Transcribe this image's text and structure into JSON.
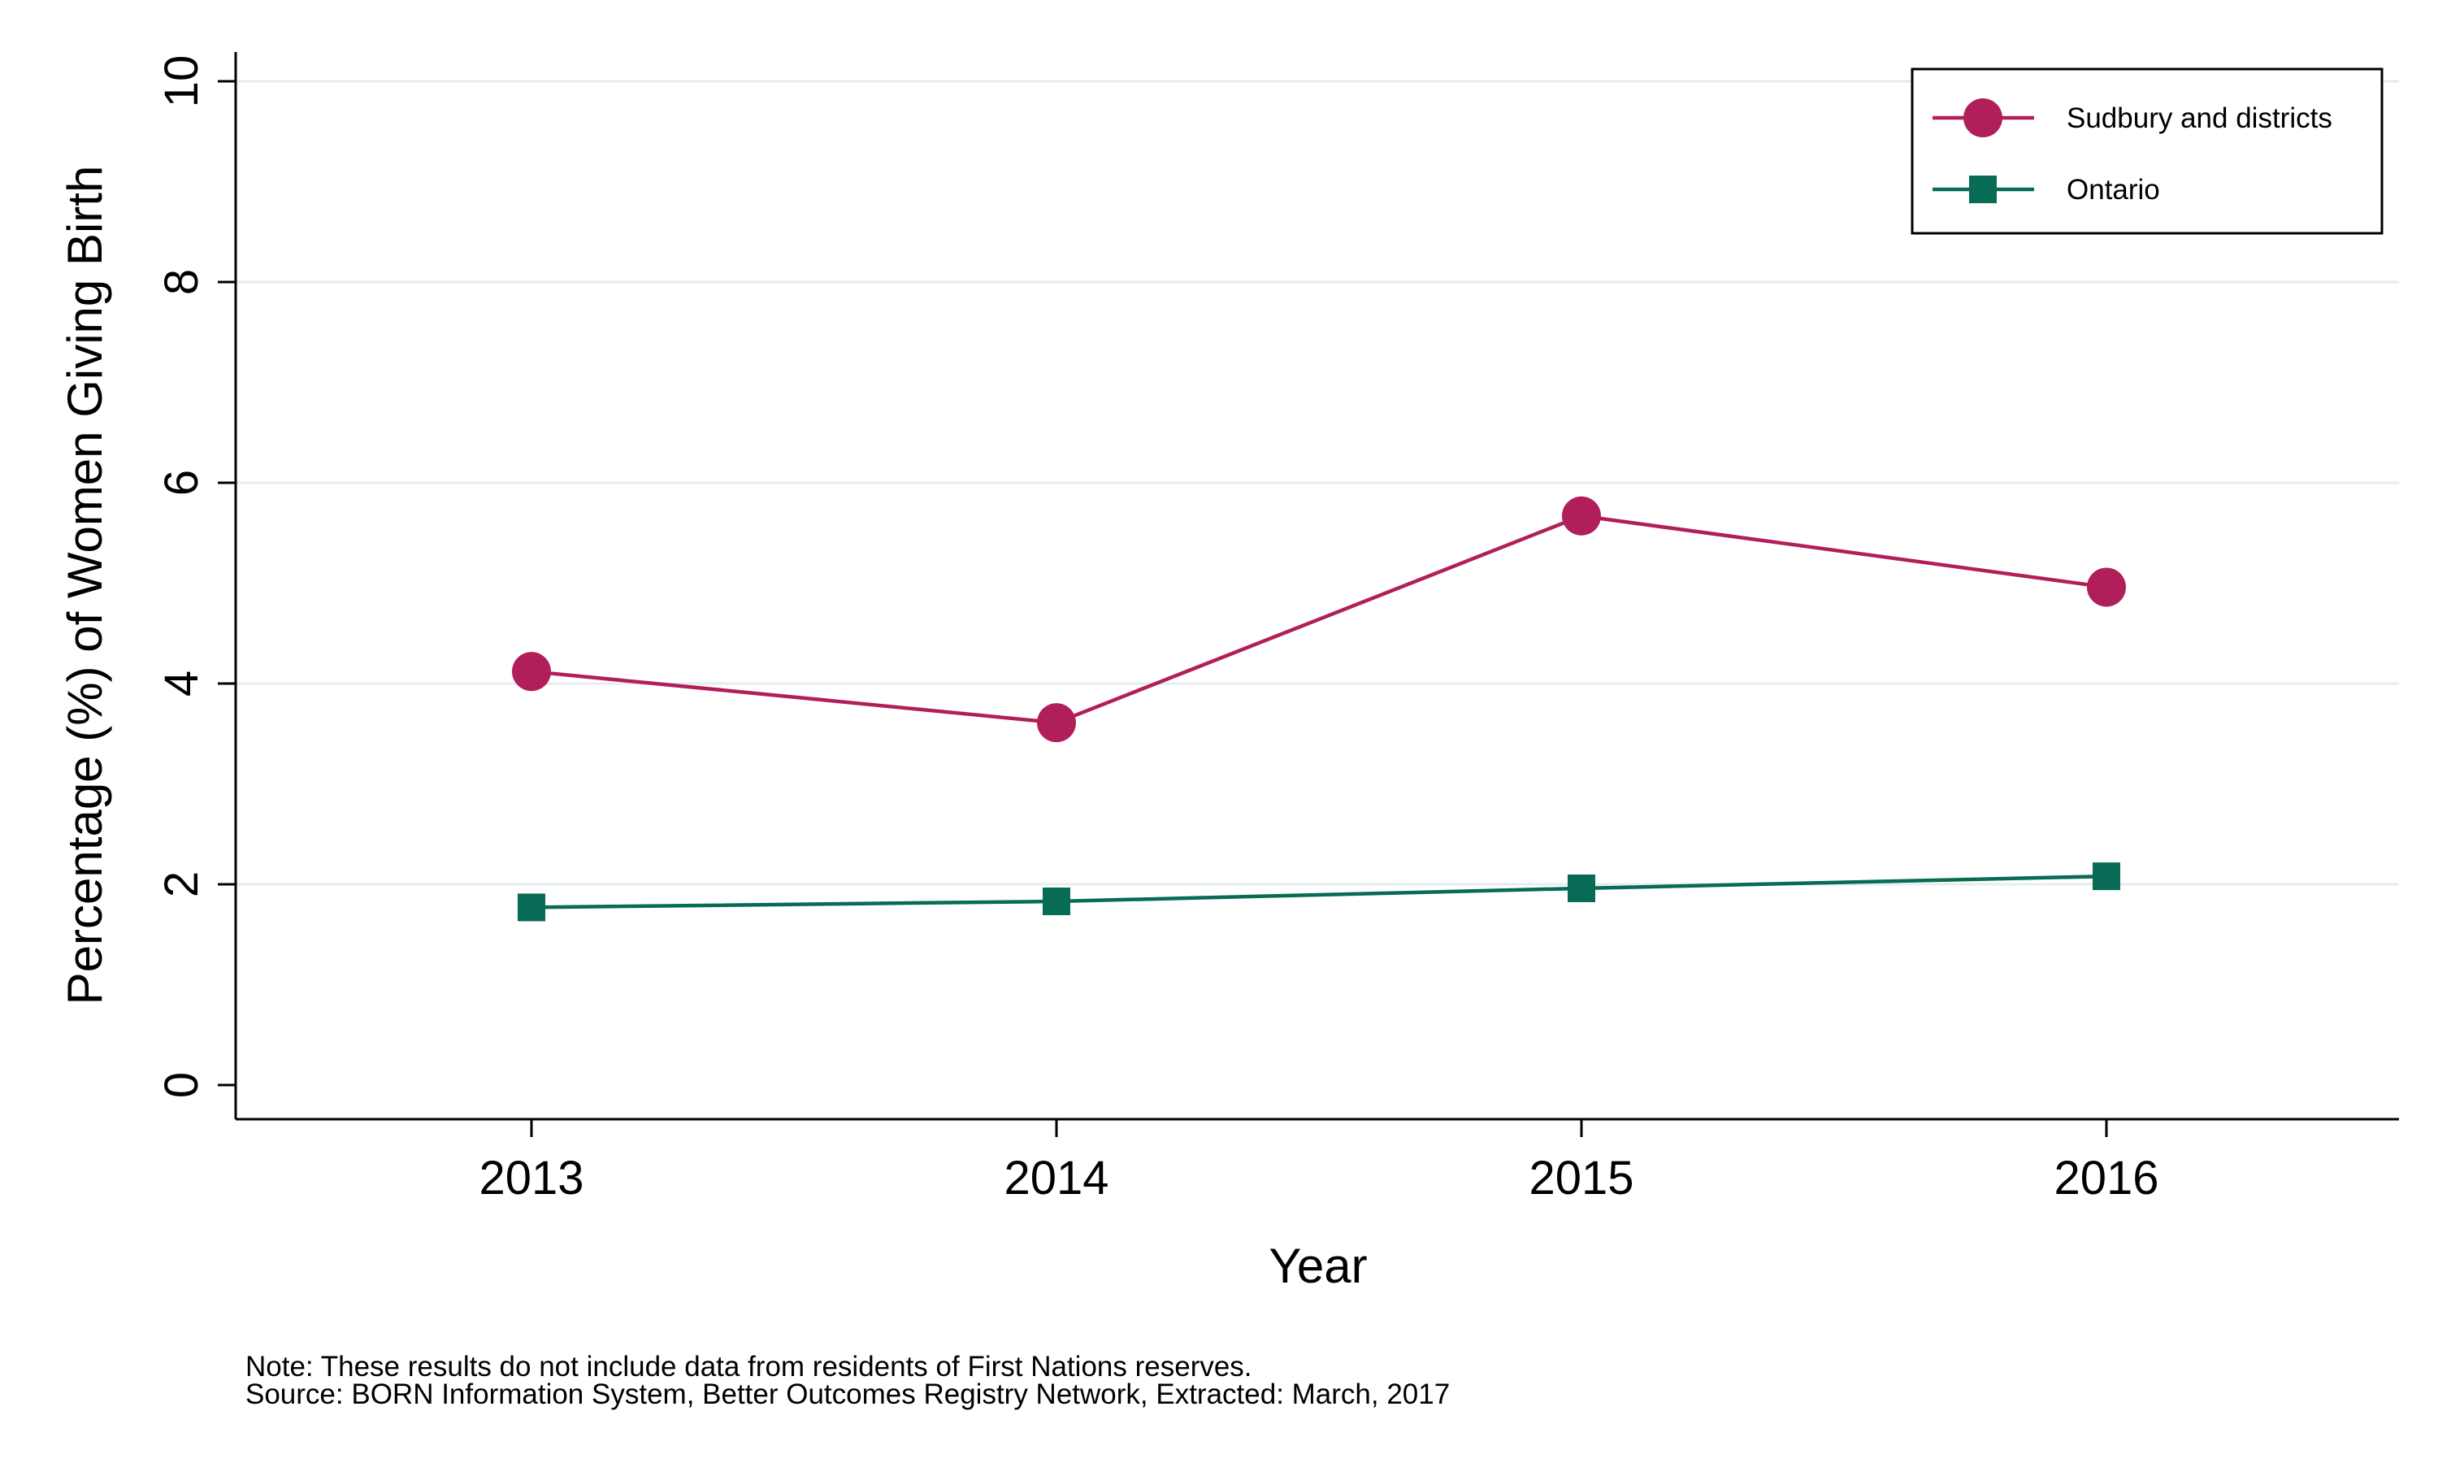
{
  "chart_data": {
    "type": "line",
    "x": [
      2013,
      2014,
      2015,
      2016
    ],
    "xlabel": "Year",
    "ylabel": "Percentage (%) of Women Giving Birth",
    "ylim": [
      0,
      10
    ],
    "yticks": [
      0,
      2,
      4,
      6,
      8,
      10
    ],
    "grid": true,
    "legend_position": "top-right",
    "series": [
      {
        "name": "Sudbury and districts",
        "marker": "circle",
        "color": "#B11F5A",
        "values": [
          4.12,
          3.61,
          5.67,
          4.96
        ]
      },
      {
        "name": "Ontario",
        "marker": "square",
        "color": "#076B55",
        "values": [
          1.77,
          1.83,
          1.96,
          2.08
        ]
      }
    ]
  },
  "notes": {
    "line1": "Note: These results do not include data from residents of First Nations reserves.",
    "line2": "Source: BORN Information System, Better Outcomes Registry Network, Extracted: March, 2017"
  }
}
